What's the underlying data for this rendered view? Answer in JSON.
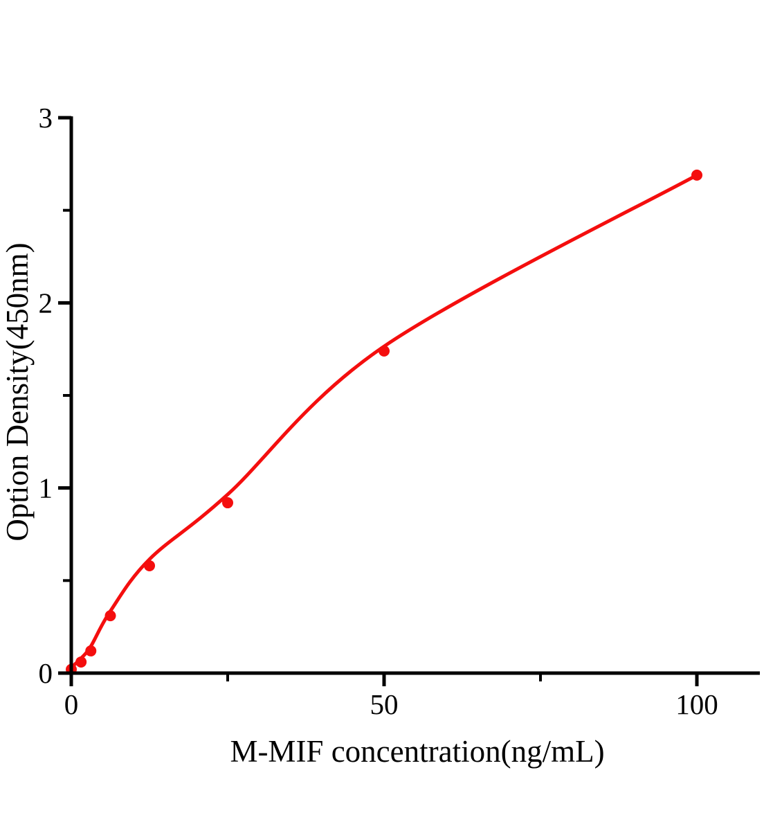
{
  "page": {
    "background": "#ffffff"
  },
  "chart_data": {
    "type": "scatter",
    "title": "",
    "xlabel": "M-MIF concentration(ng/mL)",
    "ylabel": "Option Density(450nm)",
    "x": [
      0,
      1.5625,
      3.125,
      6.25,
      12.5,
      25,
      50,
      100
    ],
    "y": [
      0.02,
      0.06,
      0.12,
      0.31,
      0.58,
      0.92,
      1.74,
      2.69
    ],
    "fit_line_od": [
      0.03,
      0.08,
      0.145,
      0.335,
      0.615,
      0.965,
      1.765,
      2.69
    ],
    "xlim": [
      0,
      110
    ],
    "ylim": [
      0,
      3
    ],
    "x_ticks_major": {
      "values": [
        0,
        50,
        100
      ],
      "labels": [
        "0",
        "50",
        "100"
      ]
    },
    "x_ticks_minor": [
      25,
      75
    ],
    "y_ticks_major": {
      "values": [
        0,
        1,
        2,
        3
      ],
      "labels": [
        "0",
        "1",
        "2",
        "3"
      ]
    },
    "y_ticks_minor": [
      0.5,
      1.5,
      2.5
    ],
    "grid": false,
    "legend": "none",
    "marker": "circle",
    "colors": {
      "series": "#f40e0e",
      "axis": "#000000",
      "text": "#000000"
    }
  }
}
